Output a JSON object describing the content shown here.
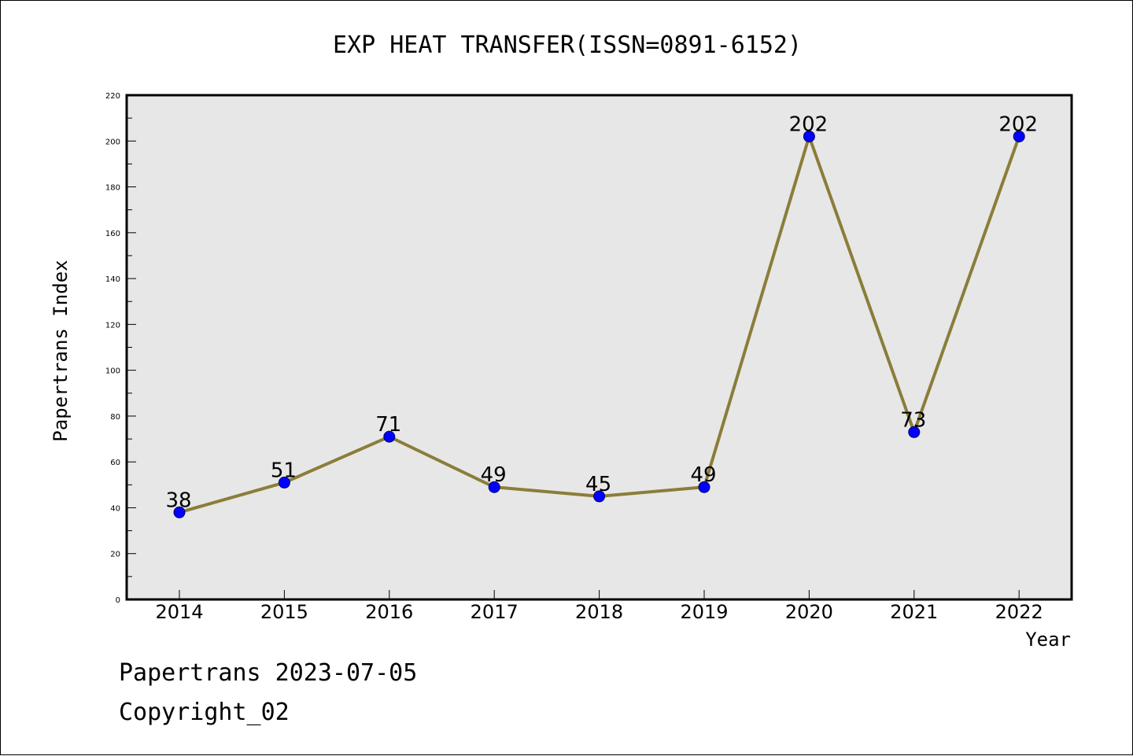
{
  "chart_data": {
    "type": "line",
    "title": "EXP HEAT TRANSFER(ISSN=0891-6152)",
    "xlabel": "Year",
    "ylabel": "Papertrans Index",
    "categories": [
      "2014",
      "2015",
      "2016",
      "2017",
      "2018",
      "2019",
      "2020",
      "2021",
      "2022"
    ],
    "series": [
      {
        "values": [
          38,
          51,
          71,
          49,
          45,
          49,
          202,
          73,
          202
        ]
      }
    ],
    "data_labels": [
      "38",
      "51",
      "71",
      "49",
      "45",
      "49",
      "202",
      "73",
      "202"
    ],
    "ylim": [
      0,
      220
    ],
    "yticks": [
      "0",
      "20",
      "40",
      "60",
      "80",
      "100",
      "120",
      "140",
      "160",
      "180",
      "200",
      "220"
    ],
    "grid": false,
    "legend": "none",
    "colors": {
      "line": "#8b7d3a",
      "marker": "#0000ff",
      "plot_background": "#e7e7e7"
    }
  },
  "footer": {
    "line1": "Papertrans 2023-07-05",
    "line2": "Copyright_02"
  }
}
